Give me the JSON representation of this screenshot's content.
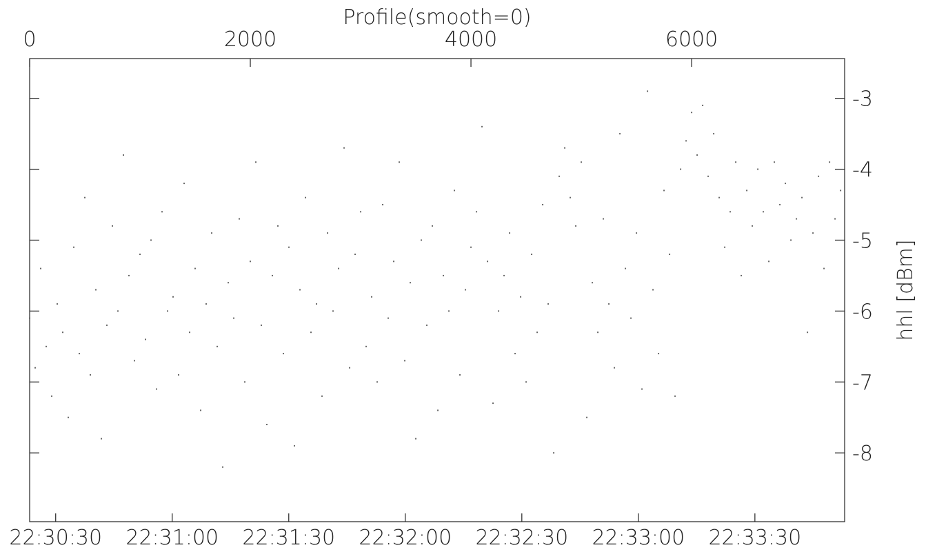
{
  "chart_data": {
    "type": "scatter",
    "title": "Profile(smooth=0)",
    "ylabel": "hhl [dBm]",
    "color": "#666666",
    "xlim": [
      0,
      7387
    ],
    "xticks": [
      0,
      2000,
      4000,
      6000
    ],
    "x2lim": [
      81023.3,
      81233.1
    ],
    "x2ticks": [
      {
        "value": 81030,
        "label": "22:30:30"
      },
      {
        "value": 81060,
        "label": "22:31:00"
      },
      {
        "value": 81090,
        "label": "22:31:30"
      },
      {
        "value": 81120,
        "label": "22:32:00"
      },
      {
        "value": 81150,
        "label": "22:32:30"
      },
      {
        "value": 81180,
        "label": "22:33:00"
      },
      {
        "value": 81210,
        "label": "22:33:30"
      }
    ],
    "ylim": [
      -8.97,
      -2.44
    ],
    "yticks": [
      -3,
      -4,
      -5,
      -6,
      -7,
      -8
    ],
    "x": [
      0,
      50,
      100,
      150,
      200,
      250,
      300,
      350,
      400,
      450,
      500,
      550,
      600,
      650,
      700,
      750,
      800,
      850,
      900,
      950,
      1000,
      1050,
      1100,
      1150,
      1200,
      1250,
      1300,
      1350,
      1400,
      1450,
      1500,
      1550,
      1600,
      1650,
      1700,
      1750,
      1800,
      1850,
      1900,
      1950,
      2000,
      2050,
      2100,
      2150,
      2200,
      2250,
      2300,
      2350,
      2400,
      2450,
      2500,
      2550,
      2600,
      2650,
      2700,
      2750,
      2800,
      2850,
      2900,
      2950,
      3000,
      3050,
      3100,
      3150,
      3200,
      3250,
      3300,
      3350,
      3400,
      3450,
      3500,
      3550,
      3600,
      3650,
      3700,
      3750,
      3800,
      3850,
      3900,
      3950,
      4000,
      4050,
      4100,
      4150,
      4200,
      4250,
      4300,
      4350,
      4400,
      4450,
      4500,
      4550,
      4600,
      4650,
      4700,
      4750,
      4800,
      4850,
      4900,
      4950,
      5000,
      5050,
      5100,
      5150,
      5200,
      5250,
      5300,
      5350,
      5400,
      5450,
      5500,
      5550,
      5600,
      5650,
      5700,
      5750,
      5800,
      5850,
      5900,
      5950,
      6000,
      6050,
      6100,
      6150,
      6200,
      6250,
      6300,
      6350,
      6400,
      6450,
      6500,
      6550,
      6600,
      6650,
      6700,
      6750,
      6800,
      6850,
      6900,
      6950,
      7000,
      7050,
      7100,
      7150,
      7200,
      7250,
      7300,
      7350
    ],
    "values": [
      -6.1,
      -6.8,
      -5.4,
      -6.5,
      -7.2,
      -5.9,
      -6.3,
      -7.5,
      -5.1,
      -6.6,
      -4.4,
      -6.9,
      -5.7,
      -7.8,
      -6.2,
      -4.8,
      -6.0,
      -3.8,
      -5.5,
      -6.7,
      -5.2,
      -6.4,
      -5.0,
      -7.1,
      -4.6,
      -6.0,
      -5.8,
      -6.9,
      -4.2,
      -6.3,
      -5.4,
      -7.4,
      -5.9,
      -4.9,
      -6.5,
      -8.2,
      -5.6,
      -6.1,
      -4.7,
      -7.0,
      -5.3,
      -3.9,
      -6.2,
      -7.6,
      -5.5,
      -4.8,
      -6.6,
      -5.1,
      -7.9,
      -5.7,
      -4.4,
      -6.3,
      -5.9,
      -7.2,
      -4.9,
      -6.0,
      -5.4,
      -3.7,
      -6.8,
      -5.2,
      -4.6,
      -6.5,
      -5.8,
      -7.0,
      -4.5,
      -6.1,
      -5.3,
      -3.9,
      -6.7,
      -5.6,
      -7.8,
      -5.0,
      -6.2,
      -4.8,
      -7.4,
      -5.5,
      -6.0,
      -4.3,
      -6.9,
      -5.7,
      -5.1,
      -4.6,
      -3.4,
      -5.3,
      -7.3,
      -6.0,
      -5.5,
      -4.9,
      -6.6,
      -5.8,
      -7.0,
      -5.2,
      -6.3,
      -4.5,
      -5.9,
      -8.0,
      -4.1,
      -3.7,
      -4.4,
      -4.8,
      -3.9,
      -7.5,
      -5.6,
      -6.3,
      -4.7,
      -5.9,
      -6.8,
      -3.5,
      -5.4,
      -6.1,
      -4.9,
      -7.1,
      -2.9,
      -5.7,
      -6.6,
      -4.3,
      -5.2,
      -7.2,
      -4.0,
      -3.6,
      -3.2,
      -3.8,
      -3.1,
      -4.1,
      -3.5,
      -4.4,
      -5.1,
      -4.6,
      -3.9,
      -5.5,
      -4.3,
      -4.8,
      -4.0,
      -4.6,
      -5.3,
      -3.9,
      -4.5,
      -4.2,
      -5.0,
      -4.7,
      -4.4,
      -6.3,
      -4.9,
      -4.1,
      -5.4,
      -3.9,
      -4.7,
      -4.3
    ]
  }
}
